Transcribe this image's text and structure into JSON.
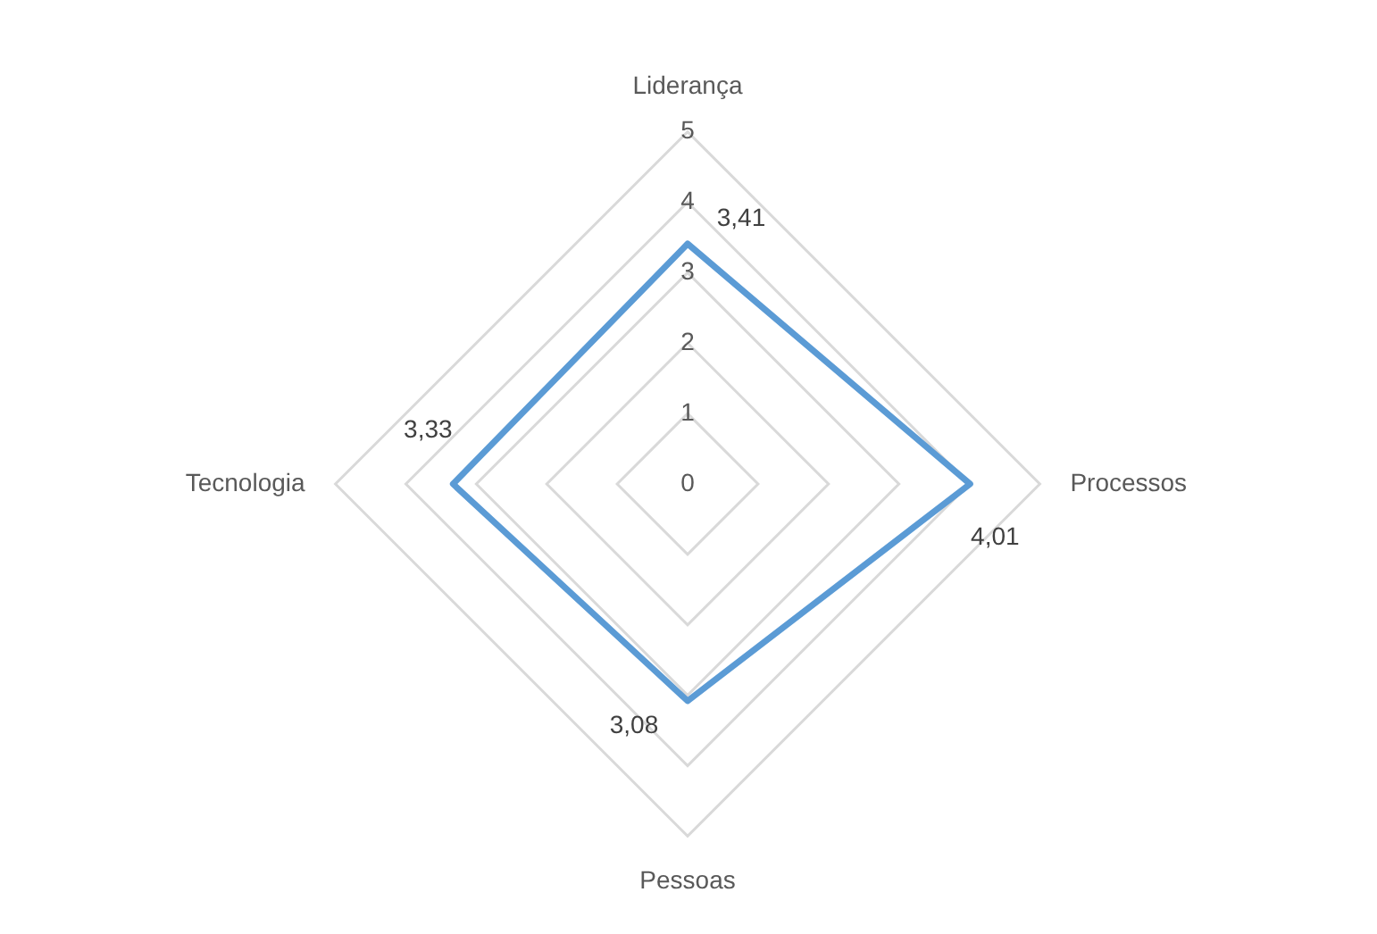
{
  "chart_data": {
    "type": "radar",
    "categories": [
      "Liderança",
      "Processos",
      "Pessoas",
      "Tecnologia"
    ],
    "series": [
      {
        "color": "#5b9bd5",
        "values": [
          3.41,
          4.01,
          3.08,
          3.33
        ],
        "value_labels": [
          "3,41",
          "4,01",
          "3,08",
          "3,33"
        ]
      }
    ],
    "ylim": [
      0,
      5
    ],
    "yticks": [
      0,
      1,
      2,
      3,
      4,
      5
    ],
    "grid": true,
    "legend": false,
    "marker": "none"
  }
}
